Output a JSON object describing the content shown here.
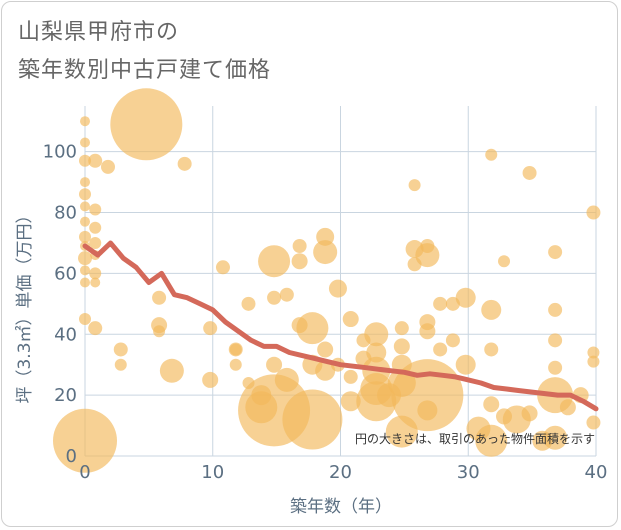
{
  "title_lines": [
    "山梨県甲府市の",
    "築年数別中古戸建て価格"
  ],
  "note": "円の大きさは、取引のあった物件面積を示す",
  "colors": {
    "bubble": "#f2b85a",
    "line": "#d4695a",
    "grid": "#c9d5e0",
    "text": "#5b6f82"
  },
  "chart_data": {
    "type": "scatter",
    "xlabel": "築年数（年）",
    "ylabel": "坪（3.3㎡）単価（万円）",
    "xlim": [
      0,
      40
    ],
    "ylim": [
      0,
      115
    ],
    "xticks": [
      0,
      10,
      20,
      30,
      40
    ],
    "yticks": [
      0,
      20,
      40,
      60,
      80,
      100
    ],
    "grid": true,
    "bubbles": [
      {
        "x": 0,
        "y": 110,
        "r": 5
      },
      {
        "x": 0,
        "y": 103,
        "r": 5
      },
      {
        "x": 0,
        "y": 97,
        "r": 6
      },
      {
        "x": 0,
        "y": 90,
        "r": 5
      },
      {
        "x": 0,
        "y": 86,
        "r": 6
      },
      {
        "x": 0,
        "y": 82,
        "r": 5
      },
      {
        "x": 0,
        "y": 77,
        "r": 5
      },
      {
        "x": 0,
        "y": 72,
        "r": 6
      },
      {
        "x": 0,
        "y": 69,
        "r": 5
      },
      {
        "x": 0,
        "y": 65,
        "r": 7
      },
      {
        "x": 0,
        "y": 61,
        "r": 5
      },
      {
        "x": 0,
        "y": 57,
        "r": 5
      },
      {
        "x": 0,
        "y": 45,
        "r": 6
      },
      {
        "x": 0,
        "y": 5,
        "r": 32
      },
      {
        "x": 0.8,
        "y": 97,
        "r": 7
      },
      {
        "x": 0.8,
        "y": 81,
        "r": 6
      },
      {
        "x": 0.8,
        "y": 75,
        "r": 6
      },
      {
        "x": 0.8,
        "y": 70,
        "r": 6
      },
      {
        "x": 0.8,
        "y": 66,
        "r": 5
      },
      {
        "x": 0.8,
        "y": 60,
        "r": 6
      },
      {
        "x": 0.8,
        "y": 57,
        "r": 5
      },
      {
        "x": 0.8,
        "y": 42,
        "r": 7
      },
      {
        "x": 1.8,
        "y": 95,
        "r": 7
      },
      {
        "x": 2.8,
        "y": 35,
        "r": 7
      },
      {
        "x": 2.8,
        "y": 30,
        "r": 6
      },
      {
        "x": 4.8,
        "y": 109,
        "r": 36
      },
      {
        "x": 5.8,
        "y": 52,
        "r": 7
      },
      {
        "x": 5.8,
        "y": 43,
        "r": 8
      },
      {
        "x": 5.8,
        "y": 41,
        "r": 6
      },
      {
        "x": 6.8,
        "y": 28,
        "r": 12
      },
      {
        "x": 7.8,
        "y": 96,
        "r": 7
      },
      {
        "x": 9.8,
        "y": 42,
        "r": 7
      },
      {
        "x": 9.8,
        "y": 25,
        "r": 8
      },
      {
        "x": 10.8,
        "y": 62,
        "r": 7
      },
      {
        "x": 11.8,
        "y": 35,
        "r": 7
      },
      {
        "x": 11.8,
        "y": 35,
        "r": 6
      },
      {
        "x": 11.8,
        "y": 30,
        "r": 6
      },
      {
        "x": 12.8,
        "y": 50,
        "r": 7
      },
      {
        "x": 12.8,
        "y": 24,
        "r": 6
      },
      {
        "x": 13.8,
        "y": 16,
        "r": 16
      },
      {
        "x": 13.8,
        "y": 20,
        "r": 10
      },
      {
        "x": 14.8,
        "y": 64,
        "r": 16
      },
      {
        "x": 14.8,
        "y": 52,
        "r": 7
      },
      {
        "x": 14.8,
        "y": 30,
        "r": 8
      },
      {
        "x": 14.8,
        "y": 15,
        "r": 36
      },
      {
        "x": 15.8,
        "y": 53,
        "r": 7
      },
      {
        "x": 15.8,
        "y": 25,
        "r": 12
      },
      {
        "x": 16.8,
        "y": 69,
        "r": 7
      },
      {
        "x": 16.8,
        "y": 64,
        "r": 8
      },
      {
        "x": 16.8,
        "y": 43,
        "r": 8
      },
      {
        "x": 17.8,
        "y": 42,
        "r": 16
      },
      {
        "x": 17.8,
        "y": 30,
        "r": 10
      },
      {
        "x": 17.8,
        "y": 12,
        "r": 30
      },
      {
        "x": 18.8,
        "y": 72,
        "r": 9
      },
      {
        "x": 18.8,
        "y": 67,
        "r": 12
      },
      {
        "x": 18.8,
        "y": 35,
        "r": 8
      },
      {
        "x": 18.8,
        "y": 28,
        "r": 10
      },
      {
        "x": 19.8,
        "y": 55,
        "r": 9
      },
      {
        "x": 19.8,
        "y": 30,
        "r": 7
      },
      {
        "x": 20.8,
        "y": 45,
        "r": 8
      },
      {
        "x": 20.8,
        "y": 26,
        "r": 7
      },
      {
        "x": 20.8,
        "y": 18,
        "r": 10
      },
      {
        "x": 21.8,
        "y": 38,
        "r": 7
      },
      {
        "x": 21.8,
        "y": 32,
        "r": 8
      },
      {
        "x": 22.8,
        "y": 40,
        "r": 12
      },
      {
        "x": 22.8,
        "y": 34,
        "r": 10
      },
      {
        "x": 22.8,
        "y": 28,
        "r": 14
      },
      {
        "x": 22.8,
        "y": 22,
        "r": 16
      },
      {
        "x": 22.8,
        "y": 18,
        "r": 20
      },
      {
        "x": 23.8,
        "y": 20,
        "r": 12
      },
      {
        "x": 24.8,
        "y": 42,
        "r": 7
      },
      {
        "x": 24.8,
        "y": 36,
        "r": 8
      },
      {
        "x": 24.8,
        "y": 30,
        "r": 10
      },
      {
        "x": 24.8,
        "y": 24,
        "r": 14
      },
      {
        "x": 24.8,
        "y": 8,
        "r": 16
      },
      {
        "x": 25.8,
        "y": 89,
        "r": 6
      },
      {
        "x": 25.8,
        "y": 68,
        "r": 9
      },
      {
        "x": 25.8,
        "y": 63,
        "r": 7
      },
      {
        "x": 26.8,
        "y": 69,
        "r": 7
      },
      {
        "x": 26.8,
        "y": 66,
        "r": 12
      },
      {
        "x": 26.8,
        "y": 44,
        "r": 8
      },
      {
        "x": 26.8,
        "y": 41,
        "r": 8
      },
      {
        "x": 26.8,
        "y": 20,
        "r": 36
      },
      {
        "x": 26.8,
        "y": 15,
        "r": 10
      },
      {
        "x": 27.8,
        "y": 50,
        "r": 7
      },
      {
        "x": 27.8,
        "y": 35,
        "r": 7
      },
      {
        "x": 28.8,
        "y": 50,
        "r": 7
      },
      {
        "x": 28.8,
        "y": 38,
        "r": 7
      },
      {
        "x": 29.8,
        "y": 52,
        "r": 10
      },
      {
        "x": 29.8,
        "y": 30,
        "r": 10
      },
      {
        "x": 30.8,
        "y": 9,
        "r": 12
      },
      {
        "x": 31.8,
        "y": 99,
        "r": 6
      },
      {
        "x": 31.8,
        "y": 48,
        "r": 10
      },
      {
        "x": 31.8,
        "y": 35,
        "r": 7
      },
      {
        "x": 31.8,
        "y": 17,
        "r": 8
      },
      {
        "x": 31.8,
        "y": 5,
        "r": 16
      },
      {
        "x": 32.8,
        "y": 64,
        "r": 6
      },
      {
        "x": 32.8,
        "y": 13,
        "r": 8
      },
      {
        "x": 33.8,
        "y": 12,
        "r": 14
      },
      {
        "x": 34.8,
        "y": 93,
        "r": 7
      },
      {
        "x": 34.8,
        "y": 14,
        "r": 8
      },
      {
        "x": 35.8,
        "y": 5,
        "r": 10
      },
      {
        "x": 36.8,
        "y": 67,
        "r": 7
      },
      {
        "x": 36.8,
        "y": 48,
        "r": 7
      },
      {
        "x": 36.8,
        "y": 38,
        "r": 7
      },
      {
        "x": 36.8,
        "y": 29,
        "r": 7
      },
      {
        "x": 36.8,
        "y": 20,
        "r": 18
      },
      {
        "x": 36.8,
        "y": 6,
        "r": 12
      },
      {
        "x": 37.8,
        "y": 16,
        "r": 8
      },
      {
        "x": 38.8,
        "y": 20,
        "r": 8
      },
      {
        "x": 39.8,
        "y": 80,
        "r": 7
      },
      {
        "x": 39.8,
        "y": 34,
        "r": 6
      },
      {
        "x": 39.8,
        "y": 31,
        "r": 6
      },
      {
        "x": 39.8,
        "y": 11,
        "r": 7
      }
    ],
    "trend": {
      "x": [
        0,
        1,
        2,
        3,
        4,
        5,
        6,
        7,
        8,
        9,
        10,
        11,
        12,
        13,
        14,
        15,
        16,
        17,
        18,
        19,
        20,
        21,
        22,
        23,
        24,
        25,
        26,
        27,
        28,
        29,
        30,
        31,
        32,
        33,
        34,
        35,
        36,
        37,
        38,
        39,
        40
      ],
      "y": [
        69,
        66,
        70,
        65,
        62,
        57,
        60,
        53,
        52,
        50,
        48,
        44,
        41,
        38,
        36,
        36,
        34,
        33,
        32,
        31,
        30,
        29.5,
        29,
        28.5,
        28,
        27.5,
        26.5,
        27,
        26.5,
        26,
        25,
        24,
        22.5,
        22,
        21.5,
        21,
        20.5,
        20,
        20,
        18,
        15.5
      ]
    }
  }
}
